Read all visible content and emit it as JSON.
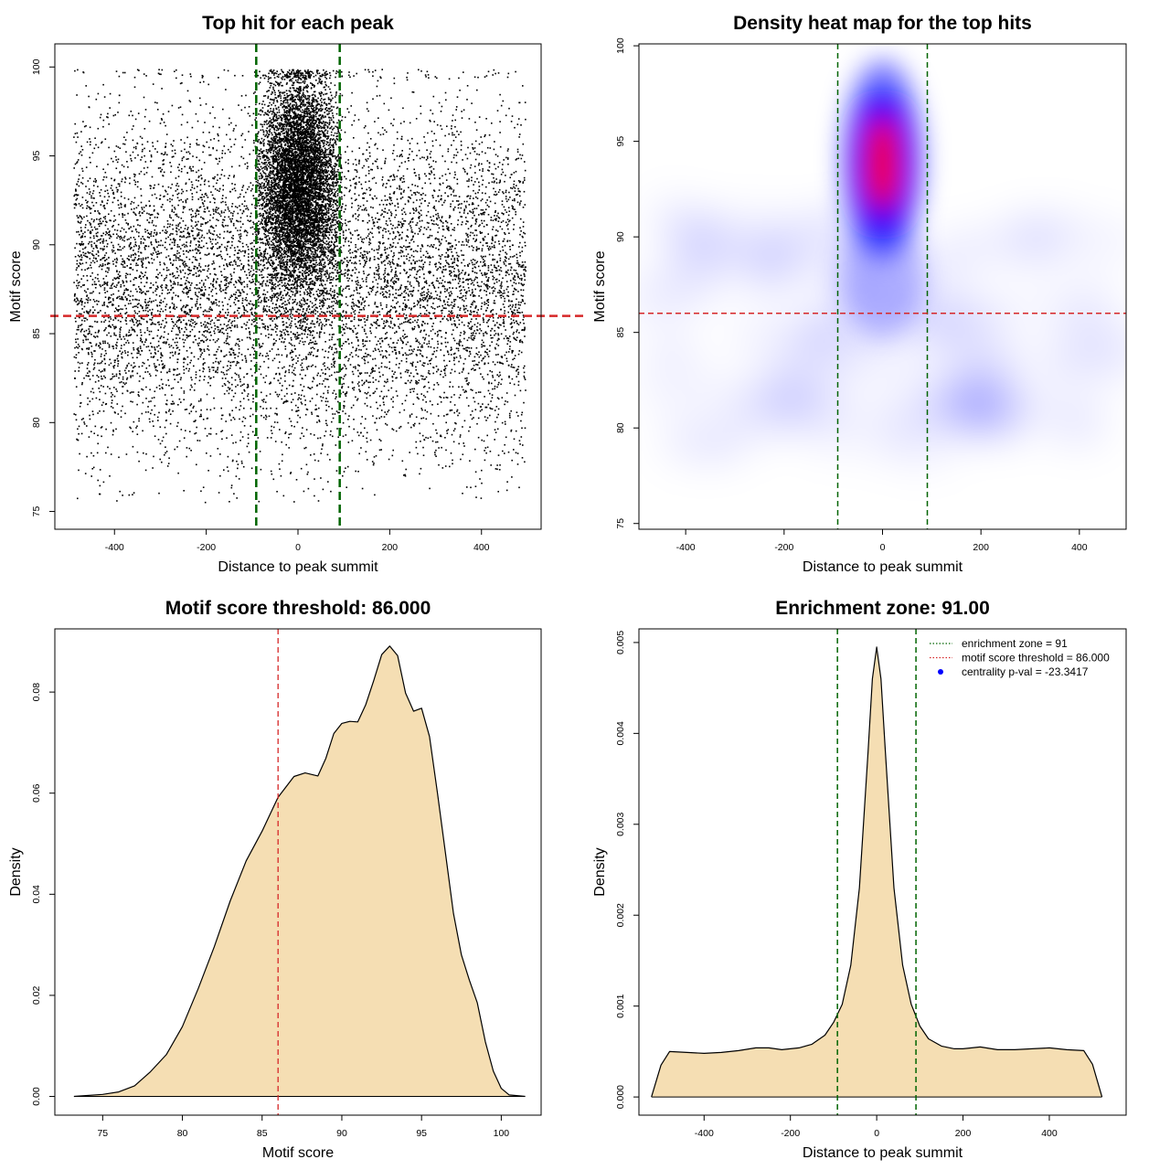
{
  "chart_data": [
    {
      "type": "scatter",
      "title": "Top hit for each peak",
      "xlabel": "Distance to peak summit",
      "ylabel": "Motif score",
      "xlim": [
        -530,
        530
      ],
      "ylim": [
        74,
        101.3
      ],
      "xticks": [
        -400,
        -200,
        0,
        200,
        400
      ],
      "yticks": [
        75,
        80,
        85,
        90,
        95,
        100
      ],
      "vlines": [
        -91,
        91
      ],
      "hline": 86,
      "grid": false,
      "point_color": "#000000",
      "vline_color": "#006400",
      "hline_color": "#d62728",
      "background": {
        "x_range": [
          -490,
          495
        ],
        "mean_score": 88,
        "sd_score": 4.8,
        "count": 9000
      },
      "central": {
        "x_mean": 0,
        "x_sd": 44,
        "mean_score": 93.5,
        "sd_score": 3.0,
        "count": 7500
      }
    },
    {
      "type": "heatmap",
      "title": "Density heat map for the top hits",
      "xlabel": "Distance to peak summit",
      "ylabel": "Motif score",
      "xlim": [
        -495,
        495
      ],
      "ylim": [
        74.7,
        100.1
      ],
      "xticks": [
        -400,
        -200,
        0,
        200,
        400
      ],
      "yticks": [
        75,
        80,
        85,
        90,
        95,
        100
      ],
      "vlines": [
        -91,
        91
      ],
      "hline": 86,
      "grid": false,
      "colors": [
        "#ffffff",
        "#0000ff",
        "#ff0000"
      ],
      "vline_color": "#006400",
      "hline_color": "#d62728"
    },
    {
      "type": "area",
      "title": "Motif score threshold: 86.000",
      "xlabel": "Motif score",
      "ylabel": "Density",
      "xlim": [
        72,
        102.5
      ],
      "ylim": [
        -0.0037,
        0.0925
      ],
      "xticks": [
        75,
        80,
        85,
        90,
        95,
        100
      ],
      "yticks": [
        0.0,
        0.02,
        0.04,
        0.06,
        0.08
      ],
      "ytick_labels": [
        "0.00",
        "0.02",
        "0.04",
        "0.06",
        "0.08"
      ],
      "vline": 86,
      "fill_color": "#f5deb3",
      "vline_color": "#d62728",
      "grid": false,
      "x": [
        73.2,
        75,
        76,
        77,
        78,
        79,
        80,
        81,
        82,
        83,
        84,
        85,
        86,
        87,
        87.7,
        88.5,
        89,
        89.5,
        90,
        90.5,
        91,
        91.5,
        92,
        92.5,
        93,
        93.5,
        94,
        94.5,
        95,
        95.5,
        96,
        96.5,
        97,
        97.5,
        98,
        98.5,
        99,
        99.5,
        100,
        100.5,
        101.5
      ],
      "y": [
        0.0,
        0.0004,
        0.0009,
        0.0021,
        0.0049,
        0.0083,
        0.0138,
        0.0214,
        0.0296,
        0.0387,
        0.0466,
        0.0525,
        0.0592,
        0.0633,
        0.064,
        0.0634,
        0.0669,
        0.0718,
        0.0738,
        0.0742,
        0.0741,
        0.0775,
        0.0823,
        0.0874,
        0.0891,
        0.0872,
        0.0798,
        0.0762,
        0.0768,
        0.0712,
        0.06,
        0.0482,
        0.0362,
        0.028,
        0.023,
        0.0185,
        0.0108,
        0.005,
        0.0016,
        0.0003,
        0.0
      ]
    },
    {
      "type": "area",
      "title": "Enrichment zone: 91.00",
      "xlabel": "Distance to peak summit",
      "ylabel": "Density",
      "xlim": [
        -551,
        578
      ],
      "ylim": [
        -0.0002,
        0.00515
      ],
      "xticks": [
        -400,
        -200,
        0,
        200,
        400
      ],
      "yticks": [
        0.0,
        0.001,
        0.002,
        0.003,
        0.004,
        0.005
      ],
      "ytick_labels": [
        "0.000",
        "0.001",
        "0.002",
        "0.003",
        "0.004",
        "0.005"
      ],
      "vlines": [
        -91,
        91
      ],
      "fill_color": "#f5deb3",
      "vline_color": "#006400",
      "grid": false,
      "x": [
        -522,
        -500,
        -480,
        -440,
        -400,
        -360,
        -320,
        -280,
        -250,
        -220,
        -200,
        -180,
        -150,
        -120,
        -100,
        -80,
        -60,
        -40,
        -20,
        -10,
        0,
        10,
        20,
        40,
        60,
        80,
        100,
        120,
        150,
        180,
        200,
        240,
        280,
        320,
        360,
        400,
        440,
        480,
        500,
        522
      ],
      "y": [
        0.0,
        0.00035,
        0.0005,
        0.00049,
        0.00048,
        0.00049,
        0.00051,
        0.00054,
        0.00054,
        0.00052,
        0.00053,
        0.00054,
        0.00058,
        0.00068,
        0.00082,
        0.00102,
        0.00145,
        0.0023,
        0.0038,
        0.0046,
        0.00495,
        0.0046,
        0.0038,
        0.0023,
        0.00145,
        0.00102,
        0.00078,
        0.00064,
        0.00056,
        0.00053,
        0.00053,
        0.00055,
        0.00052,
        0.00052,
        0.00053,
        0.00054,
        0.00052,
        0.00051,
        0.00036,
        0.0
      ],
      "legend": [
        {
          "label": "enrichment zone = 91",
          "color": "#006400",
          "style": "dotted"
        },
        {
          "label": "motif score threshold = 86.000",
          "color": "#d62728",
          "style": "dotted"
        },
        {
          "label": "centrality p-val = -23.3417",
          "color": "#0000ff",
          "style": "point"
        }
      ],
      "legend_position": "top-right"
    }
  ]
}
